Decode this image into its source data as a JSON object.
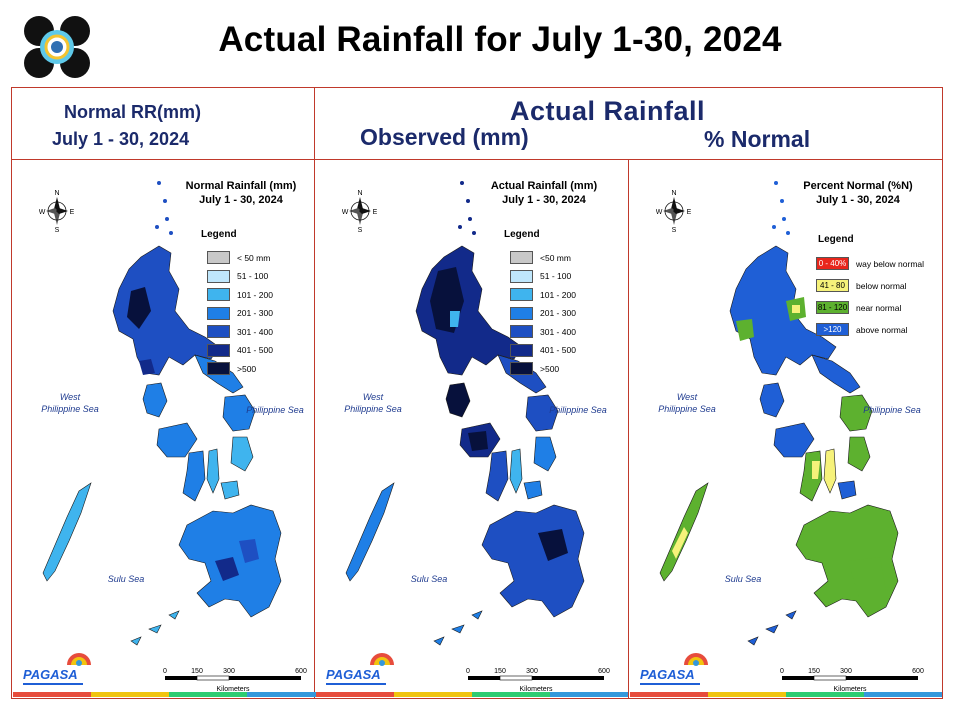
{
  "title": "Actual Rainfall for July 1-30, 2024",
  "headers": {
    "normal_line1": "Normal RR(mm)",
    "normal_line2": "July 1 - 30, 2024",
    "actual_title": "Actual Rainfall",
    "observed": "Observed (mm)",
    "percent": "% Normal"
  },
  "panels": [
    {
      "map_title_1": "Normal Rainfall (mm)",
      "map_title_2": "July 1 - 30, 2024",
      "legend_title": "Legend",
      "legend": [
        {
          "label": "< 50 mm",
          "color": "#c8c8c8"
        },
        {
          "label": "51 - 100",
          "color": "#bfe6fb"
        },
        {
          "label": "101 - 200",
          "color": "#3fb4ee"
        },
        {
          "label": "201 - 300",
          "color": "#1f7fe6"
        },
        {
          "label": "301 - 400",
          "color": "#1e4fc2"
        },
        {
          "label": "401 - 500",
          "color": "#122a8a"
        },
        {
          "label": ">500",
          "color": "#07113c"
        }
      ],
      "sea_west": "West\nPhilippine Sea",
      "sea_east": "Philippine Sea",
      "sea_sulu": "Sulu Sea",
      "scale": [
        "0",
        "150",
        "300",
        "600"
      ],
      "scale_unit": "Kilometers"
    },
    {
      "map_title_1": "Actual Rainfall (mm)",
      "map_title_2": "July 1 - 30, 2024",
      "legend_title": "Legend",
      "legend": [
        {
          "label": "<50 mm",
          "color": "#c8c8c8"
        },
        {
          "label": "51 - 100",
          "color": "#bfe6fb"
        },
        {
          "label": "101 - 200",
          "color": "#3fb4ee"
        },
        {
          "label": "201 - 300",
          "color": "#1f7fe6"
        },
        {
          "label": "301 - 400",
          "color": "#1e4fc2"
        },
        {
          "label": "401 - 500",
          "color": "#122a8a"
        },
        {
          "label": ">500",
          "color": "#07113c"
        }
      ],
      "sea_west": "West\nPhilippine Sea",
      "sea_east": "Philippine Sea",
      "sea_sulu": "Sulu Sea",
      "scale": [
        "0",
        "150",
        "300",
        "600"
      ],
      "scale_unit": "Kilometers"
    },
    {
      "map_title_1": "Percent Normal (%N)",
      "map_title_2": "July 1 - 30, 2024",
      "legend_title": "Legend",
      "legend": [
        {
          "swatch": "0 - 40%",
          "label": "way below normal",
          "color": "#e8261c"
        },
        {
          "swatch": "41 - 80",
          "label": "below normal",
          "color": "#f6f27a"
        },
        {
          "swatch": "81 - 120",
          "label": "near normal",
          "color": "#5db12f"
        },
        {
          "swatch": ">120",
          "label": "above normal",
          "color": "#1f5fd6"
        }
      ],
      "sea_west": "West\nPhilippine Sea",
      "sea_east": "Philippine Sea",
      "sea_sulu": "Sulu Sea",
      "scale": [
        "0",
        "150",
        "300",
        "600"
      ],
      "scale_unit": "Kilometers"
    }
  ],
  "logo_text": "PAGASA",
  "colors": {
    "frame": "#c0392b",
    "header_text": "#1b2a6b",
    "stripe": [
      "#e74c3c",
      "#f1c40f",
      "#2ecc71",
      "#3498db"
    ]
  }
}
